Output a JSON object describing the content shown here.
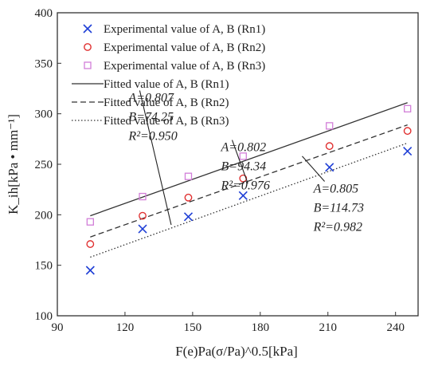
{
  "chart_data": {
    "type": "scatter",
    "xlabel": "F(e)Pa(σ/Pa)^0.5[kPa]",
    "ylabel": "K_ih[kPa • mm⁻¹]",
    "xlim": [
      90,
      250
    ],
    "ylim": [
      100,
      400
    ],
    "x_ticks": [
      90,
      120,
      150,
      180,
      210,
      240
    ],
    "y_ticks": [
      100,
      150,
      200,
      250,
      300,
      350,
      400
    ],
    "grid": false,
    "legend_position": "top-left",
    "series": [
      {
        "name": "Experimental value of A, B (Rn1)",
        "marker": "x",
        "color": "#1f3fd6",
        "points": [
          [
            104.6,
            145
          ],
          [
            127.8,
            186
          ],
          [
            148.1,
            198
          ],
          [
            172.4,
            219
          ],
          [
            210.7,
            247
          ],
          [
            245.3,
            263
          ]
        ]
      },
      {
        "name": "Experimental value of A, B (Rn2)",
        "marker": "circle",
        "color": "#e03030",
        "points": [
          [
            104.6,
            171
          ],
          [
            127.8,
            199
          ],
          [
            148.1,
            217
          ],
          [
            172.4,
            236
          ],
          [
            210.7,
            268
          ],
          [
            245.3,
            283
          ]
        ]
      },
      {
        "name": "Experimental value of A, B (Rn3)",
        "marker": "square",
        "color": "#d27ed8",
        "points": [
          [
            104.6,
            193
          ],
          [
            127.8,
            218
          ],
          [
            148.1,
            238
          ],
          [
            172.4,
            258
          ],
          [
            210.7,
            288
          ],
          [
            245.3,
            305
          ]
        ]
      },
      {
        "name": "Fitted value of A, B (Rn1)",
        "line": "solid",
        "color": "#333333",
        "points": [
          [
            104.6,
            199
          ],
          [
            245.3,
            311
          ]
        ]
      },
      {
        "name": "Fitted value of A, B (Rn2)",
        "line": "dashed",
        "color": "#333333",
        "points": [
          [
            104.6,
            178
          ],
          [
            245.3,
            289
          ]
        ]
      },
      {
        "name": "Fitted value of A, B (Rn3)",
        "line": "dotted",
        "color": "#333333",
        "points": [
          [
            104.6,
            158
          ],
          [
            245.3,
            271
          ]
        ]
      }
    ],
    "annotations": [
      {
        "id": "rn3",
        "lines": [
          "A=0.807",
          "B=74.25",
          "R²=0.950"
        ],
        "target": [
          140.5,
          190
        ],
        "text_anchor": [
          123,
          312
        ]
      },
      {
        "id": "rn2",
        "lines": [
          "A=0.802",
          "B=94.34",
          "R²=0.976"
        ],
        "target": [
          174.5,
          231
        ],
        "text_anchor": [
          164,
          263
        ]
      },
      {
        "id": "rn1",
        "lines": [
          "A=0.805",
          "B=114.73",
          "R²=0.982"
        ],
        "target": [
          198.6,
          258
        ],
        "text_anchor": [
          205,
          222
        ]
      }
    ]
  }
}
